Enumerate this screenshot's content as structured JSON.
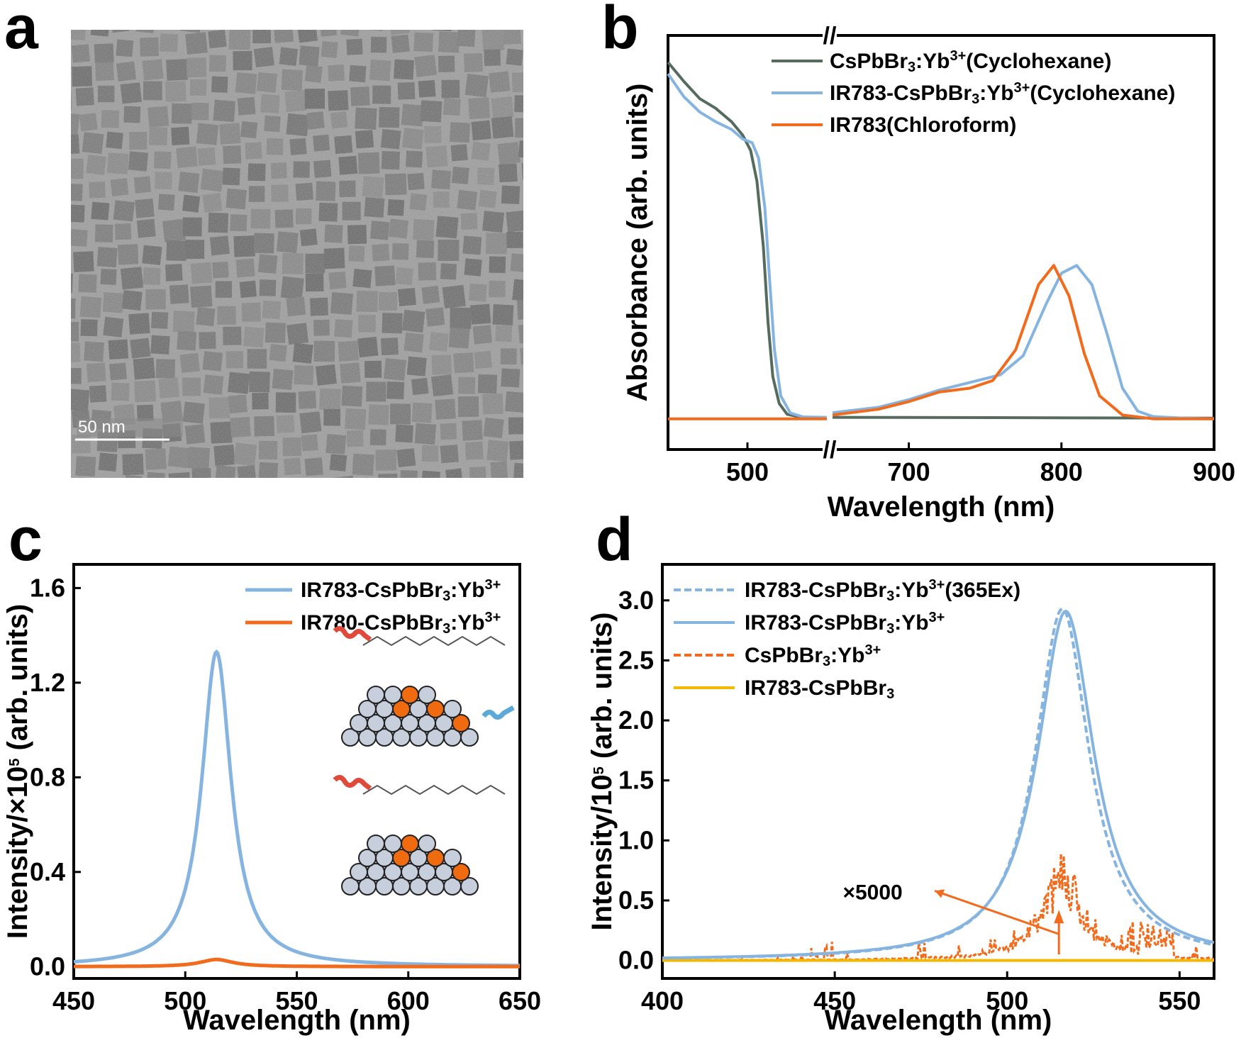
{
  "panels": {
    "a": {
      "letter": "a",
      "scale_bar_label": "50 nm"
    },
    "b": {
      "letter": "b"
    },
    "c": {
      "letter": "c"
    },
    "d": {
      "letter": "d"
    }
  },
  "colors": {
    "dark_green": "#556b5d",
    "light_blue": "#86b4e0",
    "orange": "#f26b1d",
    "yellow": "#f5b800"
  },
  "chart_data": [
    {
      "panel": "b",
      "type": "line",
      "xlabel": "Wavelength (nm)",
      "ylabel": "Absorbance (arb. units)",
      "x_ticks": [
        "500",
        "700",
        "800",
        "900"
      ],
      "axis_break": "//",
      "x_segments": [
        [
          450,
          550
        ],
        [
          650,
          900
        ]
      ],
      "legend": [
        {
          "main": "CsPbBr",
          "sub": "3",
          "mid": ":Yb",
          "sup": "3+",
          "tail": "(Cyclohexane)"
        },
        {
          "main": "IR783-CsPbBr",
          "sub": "3",
          "mid": ":Yb",
          "sup": "3+",
          "tail": "(Cyclohexane)"
        },
        {
          "main": "IR783(Chloroform)",
          "sub": "",
          "mid": "",
          "sup": "",
          "tail": ""
        }
      ],
      "series": [
        {
          "name": "CsPbBr3:Yb3+(Cyclohexane)",
          "color": "dark_green",
          "points": [
            [
              450,
              0.93
            ],
            [
              460,
              0.88
            ],
            [
              470,
              0.835
            ],
            [
              480,
              0.81
            ],
            [
              490,
              0.775
            ],
            [
              497,
              0.74
            ],
            [
              502,
              0.7
            ],
            [
              506,
              0.62
            ],
            [
              510,
              0.45
            ],
            [
              513,
              0.25
            ],
            [
              516,
              0.11
            ],
            [
              520,
              0.04
            ],
            [
              525,
              0.012
            ],
            [
              535,
              0.003
            ],
            [
              550,
              0.002
            ],
            [
              650,
              0.004
            ],
            [
              900,
              0.002
            ]
          ]
        },
        {
          "name": "IR783-CsPbBr3:Yb3+(Cyclohexane)",
          "color": "light_blue",
          "points": [
            [
              450,
              0.9
            ],
            [
              460,
              0.84
            ],
            [
              470,
              0.8
            ],
            [
              480,
              0.775
            ],
            [
              490,
              0.755
            ],
            [
              497,
              0.73
            ],
            [
              503,
              0.72
            ],
            [
              507,
              0.68
            ],
            [
              511,
              0.55
            ],
            [
              514,
              0.36
            ],
            [
              517,
              0.18
            ],
            [
              521,
              0.06
            ],
            [
              527,
              0.015
            ],
            [
              535,
              0.005
            ],
            [
              550,
              0.004
            ],
            [
              650,
              0.016
            ],
            [
              680,
              0.03
            ],
            [
              700,
              0.05
            ],
            [
              720,
              0.075
            ],
            [
              740,
              0.095
            ],
            [
              760,
              0.115
            ],
            [
              775,
              0.165
            ],
            [
              790,
              0.3
            ],
            [
              800,
              0.38
            ],
            [
              810,
              0.4
            ],
            [
              820,
              0.35
            ],
            [
              830,
              0.22
            ],
            [
              840,
              0.08
            ],
            [
              850,
              0.02
            ],
            [
              860,
              0.006
            ],
            [
              880,
              0.002
            ],
            [
              900,
              0.0
            ]
          ]
        },
        {
          "name": "IR783(Chloroform)",
          "color": "orange",
          "points": [
            [
              450,
              0.0
            ],
            [
              550,
              0.0
            ],
            [
              650,
              0.01
            ],
            [
              680,
              0.025
            ],
            [
              700,
              0.045
            ],
            [
              720,
              0.07
            ],
            [
              740,
              0.08
            ],
            [
              755,
              0.1
            ],
            [
              770,
              0.18
            ],
            [
              785,
              0.35
            ],
            [
              795,
              0.4
            ],
            [
              805,
              0.32
            ],
            [
              815,
              0.17
            ],
            [
              825,
              0.06
            ],
            [
              840,
              0.01
            ],
            [
              860,
              0.0
            ],
            [
              900,
              0.0
            ]
          ]
        }
      ]
    },
    {
      "panel": "c",
      "type": "line",
      "xlabel": "Wavelength (nm)",
      "ylabel": "Intensity/×10",
      "ylabel_sup": "5",
      "ylabel_tail": " (arb. units)",
      "xlim": [
        450,
        650
      ],
      "ylim": [
        -0.05,
        1.7
      ],
      "x_ticks": [
        450,
        500,
        550,
        600,
        650
      ],
      "y_ticks": [
        "0.0",
        "0.4",
        "0.8",
        "1.2",
        "1.6"
      ],
      "legend": [
        {
          "main": "IR783-CsPbBr",
          "sub": "3",
          "mid": ":Yb",
          "sup": "3+"
        },
        {
          "main": "IR780-CsPbBr",
          "sub": "3",
          "mid": ":Yb",
          "sup": "3+"
        }
      ],
      "series": [
        {
          "name": "IR783-CsPbBr3:Yb3+",
          "color": "light_blue",
          "peak": 514,
          "amplitude": 1.33,
          "width": 8
        },
        {
          "name": "IR780-CsPbBr3:Yb3+",
          "color": "orange",
          "peak": 514,
          "amplitude": 0.03,
          "width": 9
        }
      ]
    },
    {
      "panel": "d",
      "type": "line",
      "xlabel": "Wavelength (nm)",
      "ylabel": "Intensity/10",
      "ylabel_sup": "5",
      "ylabel_tail": " (arb. units)",
      "xlim": [
        400,
        560
      ],
      "ylim": [
        -0.15,
        3.3
      ],
      "x_ticks": [
        400,
        450,
        500,
        550
      ],
      "y_ticks": [
        "0.0",
        "0.5",
        "1.0",
        "1.5",
        "2.0",
        "2.5",
        "3.0"
      ],
      "annotation": "×5000",
      "legend": [
        {
          "main": "IR783-CsPbBr",
          "sub": "3",
          "mid": ":Yb",
          "sup": "3+",
          "tail": "(365Ex)",
          "style": "dashed",
          "color": "light_blue"
        },
        {
          "main": "IR783-CsPbBr",
          "sub": "3",
          "mid": ":Yb",
          "sup": "3+",
          "tail": "",
          "style": "solid",
          "color": "light_blue"
        },
        {
          "main": "CsPbBr",
          "sub": "3",
          "mid": ":Yb",
          "sup": "3+",
          "tail": "",
          "style": "dashed",
          "color": "orange"
        },
        {
          "main": "IR783-CsPbBr",
          "sub": "3",
          "mid": "",
          "sup": "",
          "tail": "",
          "style": "solid",
          "color": "yellow"
        }
      ],
      "series": [
        {
          "name": "IR783-CsPbBr3:Yb3+(365Ex)",
          "color": "light_blue",
          "style": "dashed",
          "peak": 516,
          "amplitude": 2.93,
          "width": 9.5
        },
        {
          "name": "IR783-CsPbBr3:Yb3+",
          "color": "light_blue",
          "style": "solid",
          "peak": 517,
          "amplitude": 2.91,
          "width": 10
        },
        {
          "name": "CsPbBr3:Yb3+ (x5000)",
          "color": "orange",
          "style": "dashed",
          "peak": 516,
          "amplitude": 0.75,
          "width": 7
        },
        {
          "name": "IR783-CsPbBr3",
          "color": "yellow",
          "style": "solid",
          "value": 0.0
        }
      ]
    }
  ]
}
